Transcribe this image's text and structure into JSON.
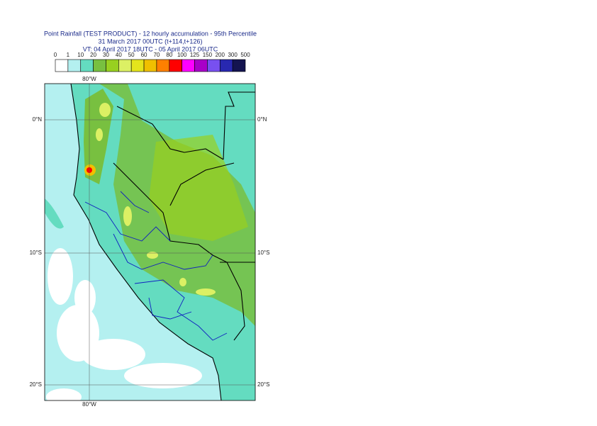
{
  "header": {
    "title": "Point Rainfall (TEST PRODUCT) - 12 hourly accumulation - 95th Percentile",
    "run": "31 March 2017 00UTC (t+114,t+126)",
    "valid": "VT: 04 April 2017 18UTC - 05 April 2017 06UTC"
  },
  "legend": {
    "labels": [
      0,
      1,
      10,
      20,
      30,
      40,
      50,
      60,
      70,
      80,
      100,
      125,
      150,
      200,
      300,
      500
    ],
    "colors": [
      "#ffffff",
      "#b4f0f0",
      "#64dcc0",
      "#78c040",
      "#98d020",
      "#dcf064",
      "#e4e41c",
      "#f0c000",
      "#ff8000",
      "#ff0000",
      "#ff00ff",
      "#a800c8",
      "#7850f0",
      "#2828b0",
      "#141450"
    ]
  },
  "map": {
    "lon_labels": [
      "80°W"
    ],
    "lat_labels": [
      "0°N",
      "10°S",
      "20°S"
    ]
  }
}
